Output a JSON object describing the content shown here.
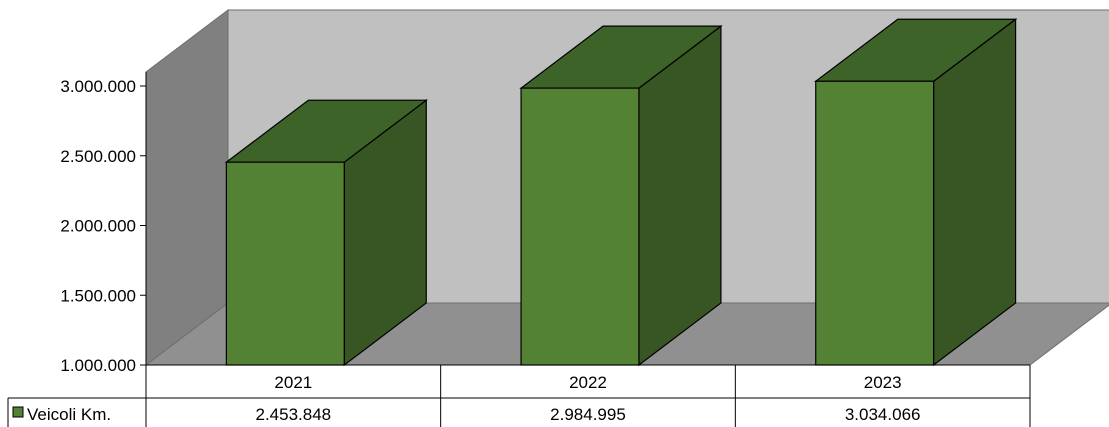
{
  "chart_data": {
    "type": "bar",
    "style": "3d-column-with-data-table",
    "categories": [
      "2021",
      "2022",
      "2023"
    ],
    "series": [
      {
        "name": "Veicoli Km.",
        "values": [
          2453848,
          2984995,
          3034066
        ],
        "value_labels": [
          "2.453.848",
          "2.984.995",
          "3.034.066"
        ]
      }
    ],
    "ylim": [
      1000000,
      3000000
    ],
    "yticks": [
      1000000,
      1500000,
      2000000,
      2500000,
      3000000
    ],
    "ytick_labels": [
      "1.000.000",
      "1.500.000",
      "2.000.000",
      "2.500.000",
      "3.000.000"
    ],
    "legend": "data-table",
    "grid": false,
    "colors": {
      "bar_front": "#548235",
      "bar_side": "#375623",
      "bar_top": "#3e6328",
      "back_wall": "#c0c0c0",
      "side_wall": "#808080",
      "floor": "#909090"
    }
  }
}
